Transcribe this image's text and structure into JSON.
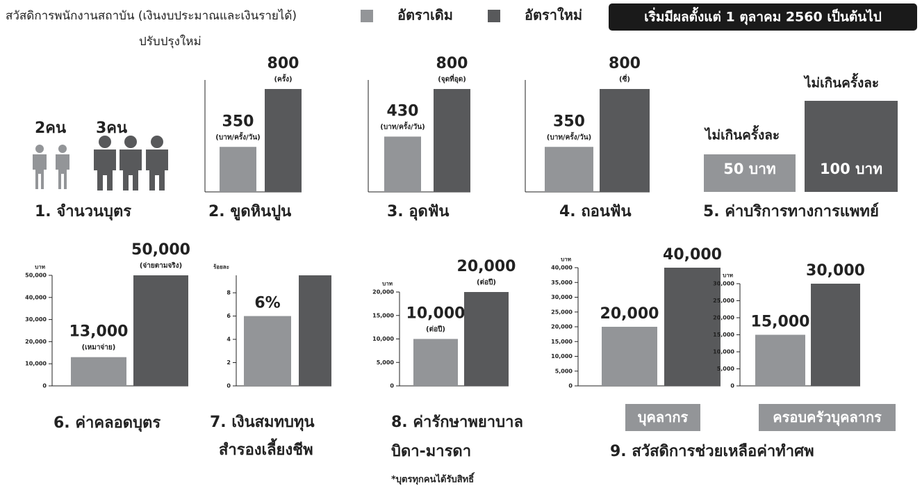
{
  "header": {
    "title": "สวัสดิการพนักงานสถาบัน (เงินงบประมาณและเงินรายได้)",
    "subtitle": "ปรับปรุงใหม่",
    "effective": "เริ่มมีผลตั้งแต่ 1 ตุลาคม 2560 เป็นต้นไป"
  },
  "legend": [
    {
      "name": "อัตราเดิม",
      "color": "#939598"
    },
    {
      "name": "อัตราใหม่",
      "color": "#58595b"
    }
  ],
  "children": {
    "title": "1. จำนวนบุตร",
    "before": "2คน",
    "after": "3คน"
  },
  "medical": {
    "title": "5. ค่าบริการทางการแพทย์",
    "captions": [
      "ไม่เกินครั้งละ",
      "ไม่เกินครั้งละ"
    ],
    "before": "50 บาท",
    "after": "100 บาท"
  },
  "funeral": {
    "title": "9. สวัสดิการช่วยเหลือค่าทำศพ"
  },
  "chart_data": [
    {
      "type": "bar",
      "title": [
        "2. ขูดหินปูน"
      ],
      "values": [
        350,
        800
      ],
      "units": [
        "(บาท/ครั้ง/วัน)",
        "(ครั้ง)"
      ],
      "colors": [
        "#939598",
        "#58595b"
      ]
    },
    {
      "type": "bar",
      "title": [
        "3. อุดฟัน"
      ],
      "values": [
        430,
        800
      ],
      "units": [
        "(บาท/ครั้ง/วัน)",
        "(จุดที่อุด)"
      ],
      "colors": [
        "#939598",
        "#58595b"
      ]
    },
    {
      "type": "bar",
      "title": [
        "4. ถอนฟัน"
      ],
      "values": [
        350,
        800
      ],
      "units": [
        "(บาท/ครั้ง/วัน)",
        "(ซี่)"
      ],
      "colors": [
        "#939598",
        "#58595b"
      ]
    },
    {
      "type": "bar",
      "title": [
        "6. ค่าคลอดบุตร"
      ],
      "y_label": "บาท",
      "values": [
        13000,
        50000
      ],
      "value_labels": [
        "13,000",
        "50,000"
      ],
      "units": [
        "(เหมาจ่าย)",
        "(จ่ายตามจริง)"
      ],
      "colors": [
        "#939598",
        "#58595b"
      ],
      "ylim": [
        0,
        50000
      ],
      "yticks": [
        0,
        {
          "value": 10000,
          "label": "10,000"
        },
        {
          "value": 20000,
          "label": "20,000"
        },
        {
          "value": 30000,
          "label": "30,000"
        },
        {
          "value": 40000,
          "label": "40,000"
        },
        {
          "value": 50000,
          "label": "50,000"
        }
      ]
    },
    {
      "type": "bar",
      "title": [
        "7. เงินสมทบทุน",
        "สำรองเลี้ยงชีพ"
      ],
      "y_label": "ร้อยละ",
      "values": [
        6,
        9.5
      ],
      "value_labels": [
        "6%",
        null
      ],
      "colors": [
        "#939598",
        "#58595b"
      ],
      "ylim": [
        0,
        9.5
      ],
      "yticks": [
        0,
        2,
        4,
        6,
        8
      ]
    },
    {
      "type": "bar",
      "title": [
        "8. ค่ารักษาพยาบาล",
        "บิดา-มารดา"
      ],
      "note": "*บุตรทุกคนได้รับสิทธิ์",
      "y_label": "บาท",
      "values": [
        10000,
        20000
      ],
      "value_labels": [
        "10,000",
        "20,000"
      ],
      "units": [
        "(ต่อปี)",
        "(ต่อปี)"
      ],
      "colors": [
        "#939598",
        "#58595b"
      ],
      "ylim": [
        0,
        20000
      ],
      "yticks": [
        0,
        {
          "value": 5000,
          "label": "5,000"
        },
        {
          "value": 10000,
          "label": "10,000"
        },
        {
          "value": 15000,
          "label": "15,000"
        },
        {
          "value": 20000,
          "label": "20,000"
        }
      ]
    },
    {
      "type": "bar",
      "title": [
        "บุคลากร"
      ],
      "y_label": "บาท",
      "values": [
        20000,
        40000
      ],
      "value_labels": [
        "20,000",
        "40,000"
      ],
      "colors": [
        "#939598",
        "#58595b"
      ],
      "ylim": [
        0,
        40000
      ],
      "yticks": [
        0,
        {
          "value": 5000,
          "label": "5,000"
        },
        {
          "value": 10000,
          "label": "10,000"
        },
        {
          "value": 15000,
          "label": "15,000"
        },
        {
          "value": 20000,
          "label": "20,000"
        },
        {
          "value": 25000,
          "label": "25,000"
        },
        {
          "value": 30000,
          "label": "30,000"
        },
        {
          "value": 35000,
          "label": "35,000"
        },
        {
          "value": 40000,
          "label": "40,000"
        }
      ]
    },
    {
      "type": "bar",
      "title": [
        "ครอบครัวบุคลากร"
      ],
      "y_label": "บาท",
      "values": [
        15000,
        30000
      ],
      "value_labels": [
        "15,000",
        "30,000"
      ],
      "colors": [
        "#939598",
        "#58595b"
      ],
      "ylim": [
        0,
        30000
      ],
      "yticks": [
        0,
        {
          "value": 5000,
          "label": "5,000"
        },
        {
          "value": 10000,
          "label": "10,000"
        },
        {
          "value": 15000,
          "label": "15,000"
        },
        {
          "value": 20000,
          "label": "20,000"
        },
        {
          "value": 25000,
          "label": "25,000"
        },
        {
          "value": 30000,
          "label": "30,000"
        }
      ]
    }
  ]
}
